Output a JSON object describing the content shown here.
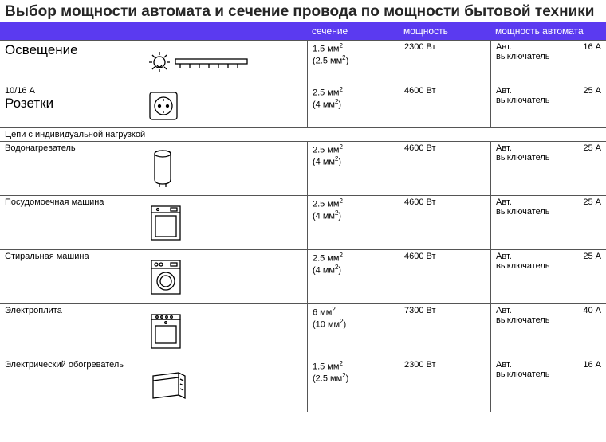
{
  "title": "Выбор мощности автомата и сечение провода по мощности бытовой техники",
  "columns": {
    "section": "сечение",
    "power": "мощность",
    "breaker_power": "мощность автомата"
  },
  "section_header": "Цепи с индивидуальной нагрузкой",
  "breaker_type": "Авт. выключатель",
  "rows": [
    {
      "label": "Освещение",
      "label_big": true,
      "sublabel": "",
      "icon": "lamp",
      "section1": "1.5 мм",
      "section2": "(2.5 мм",
      "power": "2300 Вт",
      "amps": "16 А"
    },
    {
      "label": "10/16 А",
      "label_big": false,
      "sublabel": "Розетки",
      "icon": "socket",
      "section1": "2.5 мм",
      "section2": "(4 мм",
      "power": "4600 Вт",
      "amps": "25 А"
    },
    {
      "label": "Водонагреватель",
      "label_big": false,
      "sublabel": "",
      "icon": "boiler",
      "section1": "2.5 мм",
      "section2": "(4 мм",
      "power": "4600 Вт",
      "amps": "25 А"
    },
    {
      "label": "Посудомоечная машина",
      "label_big": false,
      "sublabel": "",
      "icon": "dishwasher",
      "section1": "2.5 мм",
      "section2": "(4 мм",
      "power": "4600 Вт",
      "amps": "25 А"
    },
    {
      "label": "Стиральная машина",
      "label_big": false,
      "sublabel": "",
      "icon": "washer",
      "section1": "2.5 мм",
      "section2": "(4 мм",
      "power": "4600 Вт",
      "amps": "25 А"
    },
    {
      "label": "Электроплита",
      "label_big": false,
      "sublabel": "",
      "icon": "stove",
      "section1": "6 мм",
      "section2": "(10 мм",
      "power": "7300 Вт",
      "amps": "40 А"
    },
    {
      "label": "Электрический обогреватель",
      "label_big": false,
      "sublabel": "",
      "icon": "heater",
      "section1": "1.5 мм",
      "section2": "(2.5 мм",
      "power": "2300 Вт",
      "amps": "16 А"
    }
  ],
  "colors": {
    "header_bg": "#5b3af0",
    "header_fg": "#ffffff",
    "border": "#555555"
  }
}
